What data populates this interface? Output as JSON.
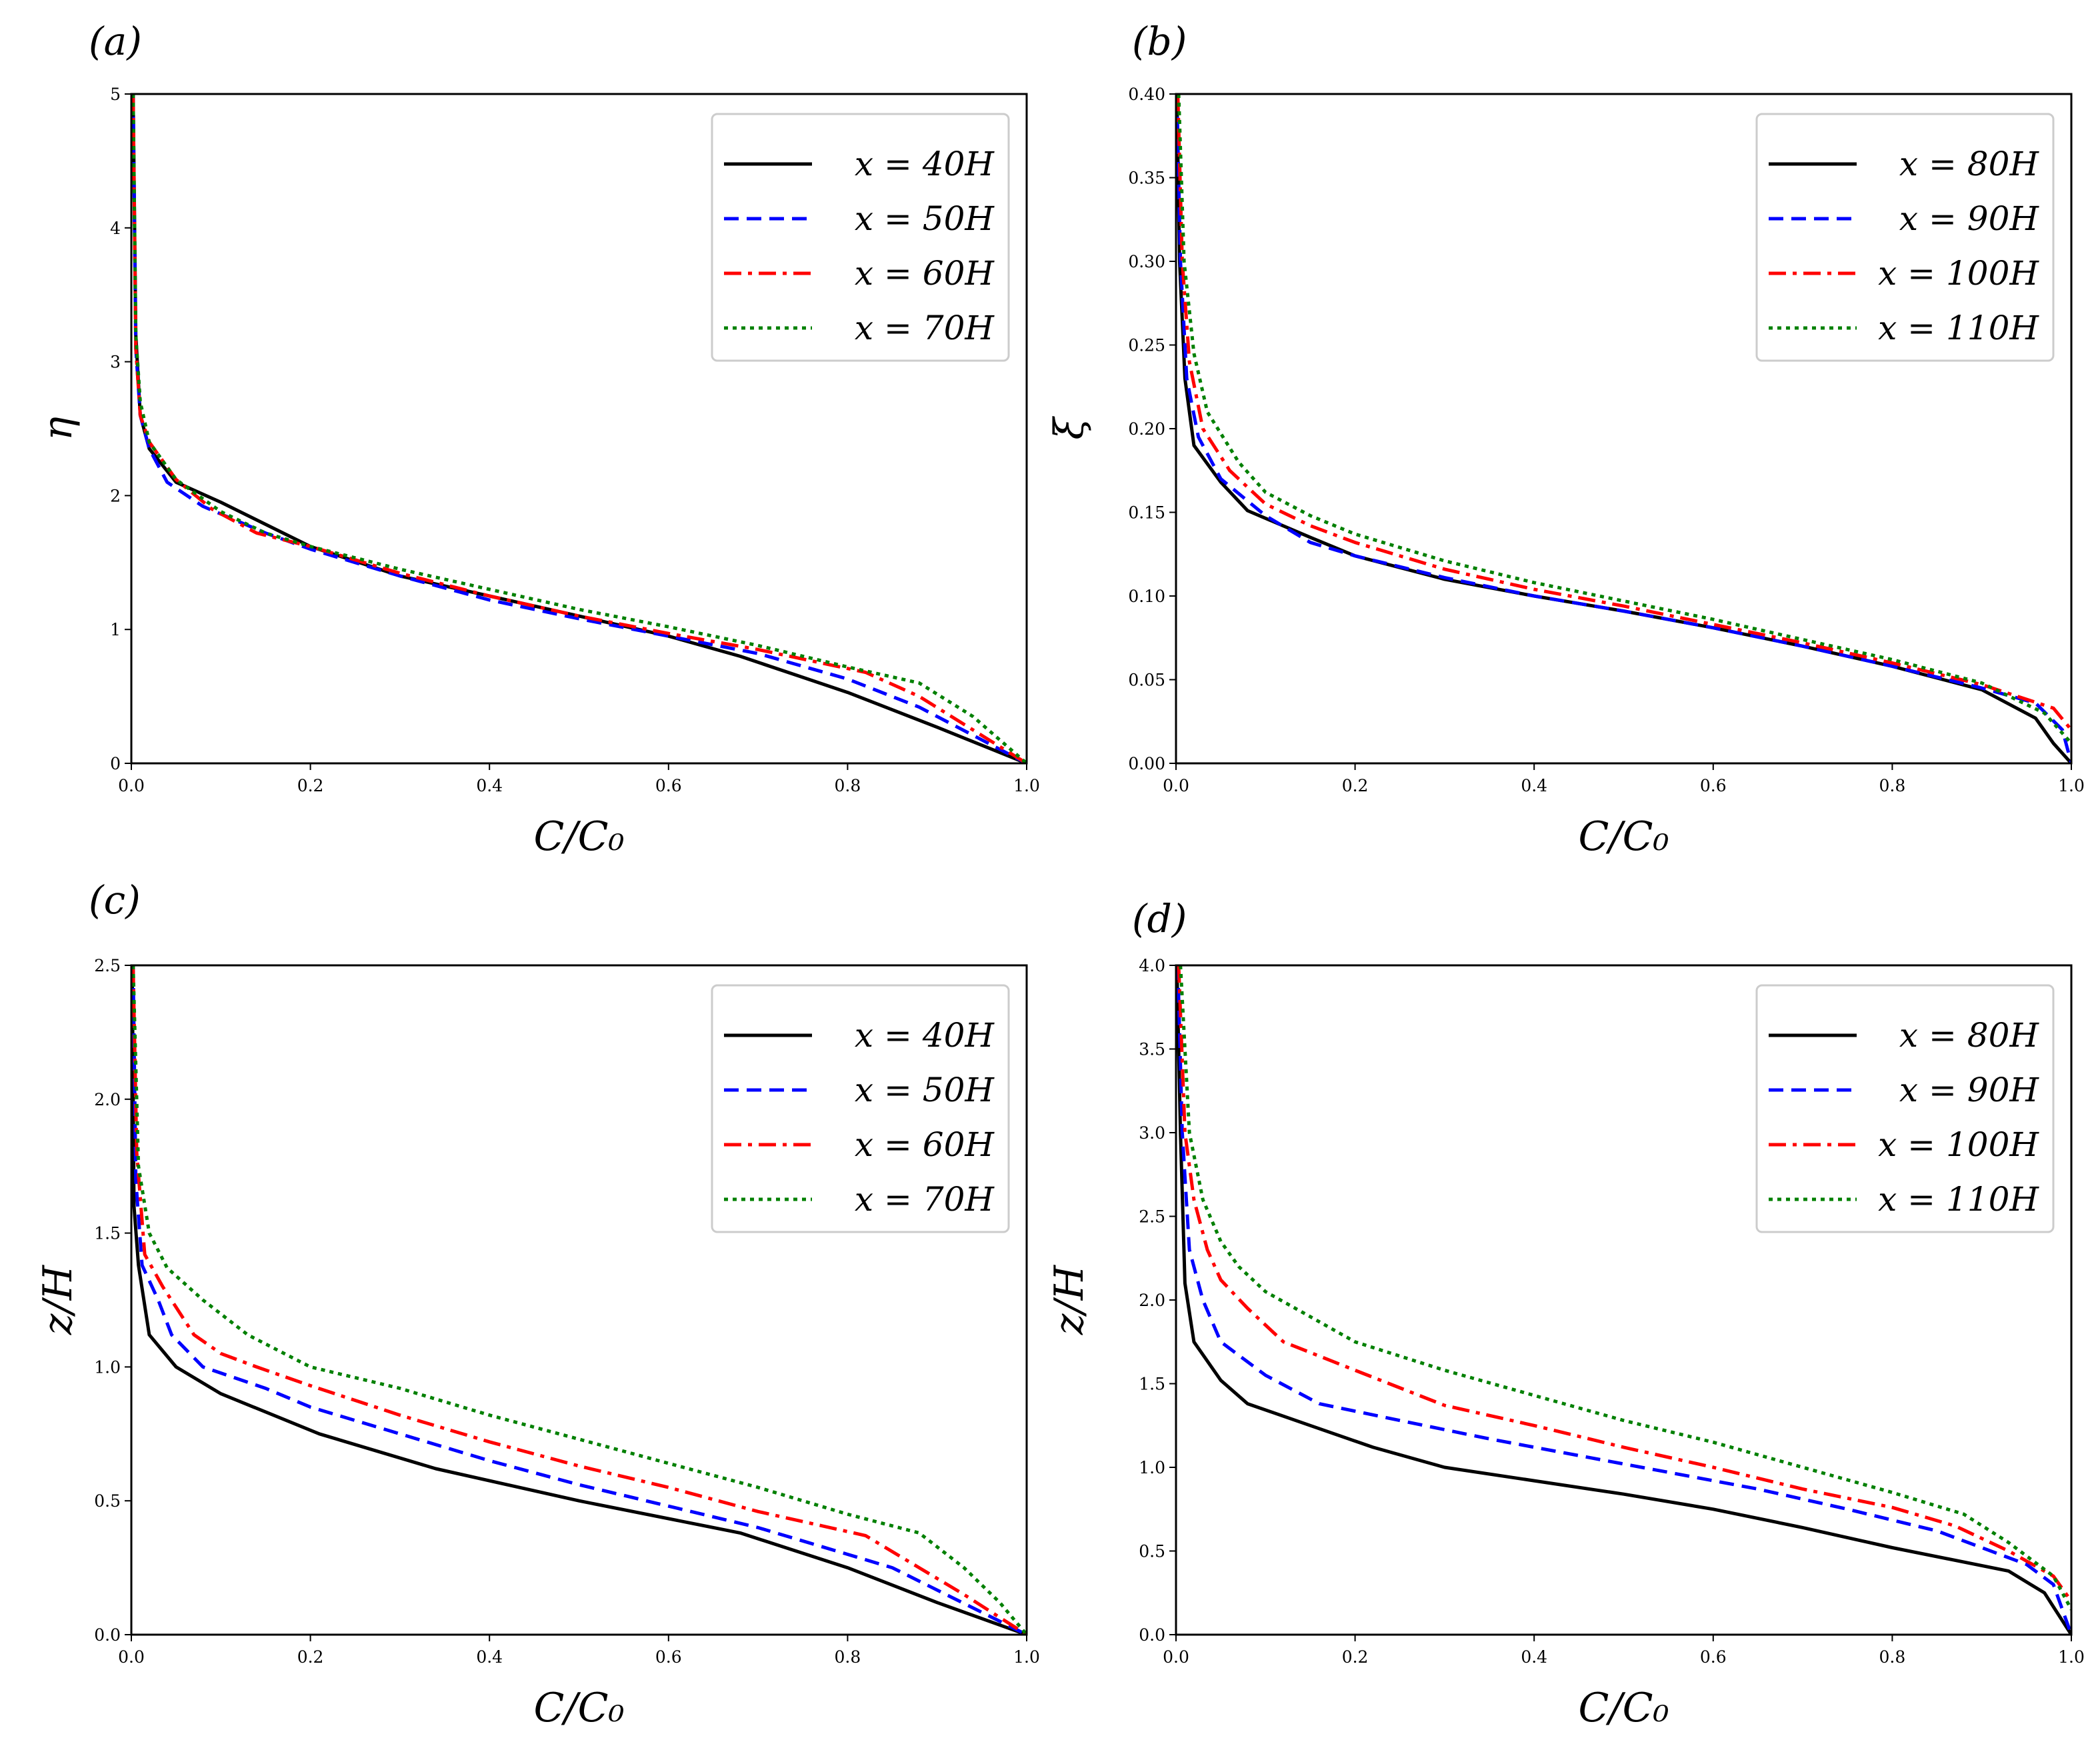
{
  "chart_data": [
    {
      "type": "line",
      "panel_label": "(a)",
      "xlabel": "C/C₀",
      "ylabel": "η",
      "xlim": [
        0,
        1
      ],
      "ylim": [
        0,
        5
      ],
      "xticks": [
        0.0,
        0.2,
        0.4,
        0.6,
        0.8,
        1.0
      ],
      "xtick_labels": [
        "0.0",
        "0.2",
        "0.4",
        "0.6",
        "0.8",
        "1.0"
      ],
      "yticks": [
        0,
        1,
        2,
        3,
        4,
        5
      ],
      "ytick_labels": [
        "0",
        "1",
        "2",
        "3",
        "4",
        "5"
      ],
      "legend_position": "top-right",
      "series": [
        {
          "name": "x = 40H",
          "color": "#000000",
          "style": "solid",
          "x": [
            0.002,
            0.005,
            0.01,
            0.02,
            0.05,
            0.1,
            0.2,
            0.3,
            0.4,
            0.5,
            0.6,
            0.68,
            0.8,
            0.9,
            1.0
          ],
          "y": [
            5.0,
            3.2,
            2.6,
            2.35,
            2.1,
            1.95,
            1.62,
            1.4,
            1.25,
            1.1,
            0.95,
            0.8,
            0.53,
            0.27,
            0.0
          ]
        },
        {
          "name": "x = 50H",
          "color": "#0000ff",
          "style": "dashed",
          "x": [
            0.002,
            0.005,
            0.01,
            0.02,
            0.04,
            0.08,
            0.15,
            0.2,
            0.3,
            0.4,
            0.5,
            0.6,
            0.7,
            0.8,
            0.88,
            1.0
          ],
          "y": [
            5.0,
            3.1,
            2.6,
            2.35,
            2.1,
            1.92,
            1.72,
            1.6,
            1.4,
            1.22,
            1.08,
            0.95,
            0.82,
            0.63,
            0.42,
            0.0
          ]
        },
        {
          "name": "x = 60H",
          "color": "#ff0000",
          "style": "dashdot",
          "x": [
            0.002,
            0.005,
            0.01,
            0.02,
            0.05,
            0.09,
            0.14,
            0.2,
            0.3,
            0.4,
            0.5,
            0.6,
            0.7,
            0.82,
            0.88,
            1.0
          ],
          "y": [
            5.0,
            3.1,
            2.6,
            2.4,
            2.12,
            1.9,
            1.72,
            1.62,
            1.42,
            1.25,
            1.1,
            0.97,
            0.85,
            0.68,
            0.5,
            0.0
          ]
        },
        {
          "name": "x = 70H",
          "color": "#008000",
          "style": "dotted",
          "x": [
            0.002,
            0.005,
            0.01,
            0.02,
            0.05,
            0.1,
            0.15,
            0.2,
            0.3,
            0.4,
            0.5,
            0.6,
            0.7,
            0.8,
            0.88,
            0.94,
            1.0
          ],
          "y": [
            5.0,
            3.2,
            2.7,
            2.4,
            2.12,
            1.88,
            1.72,
            1.62,
            1.45,
            1.3,
            1.15,
            1.02,
            0.88,
            0.72,
            0.6,
            0.35,
            0.0
          ]
        }
      ]
    },
    {
      "type": "line",
      "panel_label": "(b)",
      "xlabel": "C/C₀",
      "ylabel": "ξ",
      "xlim": [
        0,
        1
      ],
      "ylim": [
        0,
        0.4
      ],
      "xticks": [
        0.0,
        0.2,
        0.4,
        0.6,
        0.8,
        1.0
      ],
      "xtick_labels": [
        "0.0",
        "0.2",
        "0.4",
        "0.6",
        "0.8",
        "1.0"
      ],
      "yticks": [
        0.0,
        0.05,
        0.1,
        0.15,
        0.2,
        0.25,
        0.3,
        0.35,
        0.4
      ],
      "ytick_labels": [
        "0.00",
        "0.05",
        "0.10",
        "0.15",
        "0.20",
        "0.25",
        "0.30",
        "0.35",
        "0.40"
      ],
      "legend_position": "top-right",
      "series": [
        {
          "name": "x = 80H",
          "color": "#000000",
          "style": "solid",
          "x": [
            0.001,
            0.004,
            0.01,
            0.02,
            0.05,
            0.08,
            0.15,
            0.2,
            0.3,
            0.4,
            0.5,
            0.6,
            0.7,
            0.8,
            0.9,
            0.96,
            0.98,
            1.0
          ],
          "y": [
            0.4,
            0.3,
            0.23,
            0.19,
            0.168,
            0.151,
            0.135,
            0.124,
            0.11,
            0.1,
            0.091,
            0.081,
            0.07,
            0.058,
            0.044,
            0.027,
            0.012,
            0.0
          ]
        },
        {
          "name": "x = 90H",
          "color": "#0000ff",
          "style": "dashed",
          "x": [
            0.001,
            0.005,
            0.012,
            0.025,
            0.05,
            0.1,
            0.15,
            0.2,
            0.3,
            0.4,
            0.5,
            0.6,
            0.7,
            0.8,
            0.9,
            0.96,
            0.99,
            1.0
          ],
          "y": [
            0.4,
            0.3,
            0.23,
            0.195,
            0.17,
            0.148,
            0.132,
            0.124,
            0.111,
            0.1,
            0.091,
            0.081,
            0.07,
            0.058,
            0.045,
            0.036,
            0.02,
            0.0
          ]
        },
        {
          "name": "x = 100H",
          "color": "#ff0000",
          "style": "dashdot",
          "x": [
            0.002,
            0.007,
            0.015,
            0.03,
            0.06,
            0.1,
            0.15,
            0.2,
            0.3,
            0.4,
            0.5,
            0.6,
            0.7,
            0.8,
            0.9,
            0.98,
            1.0
          ],
          "y": [
            0.4,
            0.3,
            0.24,
            0.2,
            0.175,
            0.155,
            0.142,
            0.132,
            0.116,
            0.104,
            0.094,
            0.083,
            0.072,
            0.06,
            0.047,
            0.033,
            0.02
          ]
        },
        {
          "name": "x = 110H",
          "color": "#008000",
          "style": "dotted",
          "x": [
            0.003,
            0.009,
            0.02,
            0.035,
            0.07,
            0.1,
            0.15,
            0.2,
            0.3,
            0.4,
            0.5,
            0.6,
            0.7,
            0.8,
            0.9,
            0.97,
            1.0
          ],
          "y": [
            0.4,
            0.3,
            0.245,
            0.21,
            0.18,
            0.162,
            0.148,
            0.137,
            0.121,
            0.108,
            0.097,
            0.086,
            0.074,
            0.062,
            0.048,
            0.03,
            0.012
          ]
        }
      ]
    },
    {
      "type": "line",
      "panel_label": "(c)",
      "xlabel": "C/C₀",
      "ylabel": "z/H",
      "xlim": [
        0,
        1
      ],
      "ylim": [
        0,
        2.5
      ],
      "xticks": [
        0.0,
        0.2,
        0.4,
        0.6,
        0.8,
        1.0
      ],
      "xtick_labels": [
        "0.0",
        "0.2",
        "0.4",
        "0.6",
        "0.8",
        "1.0"
      ],
      "yticks": [
        0.0,
        0.5,
        1.0,
        1.5,
        2.0,
        2.5
      ],
      "ytick_labels": [
        "0.0",
        "0.5",
        "1.0",
        "1.5",
        "2.0",
        "2.5"
      ],
      "legend_position": "top-right",
      "series": [
        {
          "name": "x = 40H",
          "color": "#000000",
          "style": "solid",
          "x": [
            0.001,
            0.003,
            0.008,
            0.02,
            0.05,
            0.1,
            0.21,
            0.34,
            0.5,
            0.68,
            0.8,
            0.9,
            1.0
          ],
          "y": [
            2.5,
            1.6,
            1.38,
            1.12,
            1.0,
            0.9,
            0.75,
            0.62,
            0.5,
            0.38,
            0.25,
            0.12,
            0.0
          ]
        },
        {
          "name": "x = 50H",
          "color": "#0000ff",
          "style": "dashed",
          "x": [
            0.002,
            0.005,
            0.012,
            0.03,
            0.045,
            0.08,
            0.15,
            0.2,
            0.3,
            0.4,
            0.5,
            0.6,
            0.7,
            0.8,
            0.85,
            1.0
          ],
          "y": [
            2.5,
            1.7,
            1.38,
            1.25,
            1.12,
            1.0,
            0.92,
            0.85,
            0.75,
            0.65,
            0.56,
            0.48,
            0.4,
            0.3,
            0.25,
            0.0
          ]
        },
        {
          "name": "x = 60H",
          "color": "#ff0000",
          "style": "dashdot",
          "x": [
            0.002,
            0.006,
            0.015,
            0.035,
            0.07,
            0.1,
            0.14,
            0.2,
            0.3,
            0.4,
            0.5,
            0.6,
            0.7,
            0.82,
            0.88,
            0.93,
            1.0
          ],
          "y": [
            2.5,
            1.8,
            1.42,
            1.3,
            1.12,
            1.05,
            1.0,
            0.93,
            0.82,
            0.72,
            0.63,
            0.55,
            0.46,
            0.37,
            0.25,
            0.15,
            0.0
          ]
        },
        {
          "name": "x = 70H",
          "color": "#008000",
          "style": "dotted",
          "x": [
            0.002,
            0.008,
            0.02,
            0.04,
            0.08,
            0.13,
            0.2,
            0.3,
            0.4,
            0.5,
            0.6,
            0.7,
            0.8,
            0.88,
            0.93,
            0.97,
            1.0
          ],
          "y": [
            2.5,
            1.75,
            1.5,
            1.37,
            1.25,
            1.12,
            1.0,
            0.92,
            0.82,
            0.73,
            0.64,
            0.55,
            0.45,
            0.38,
            0.25,
            0.12,
            0.0
          ]
        }
      ]
    },
    {
      "type": "line",
      "panel_label": "(d)",
      "xlabel": "C/C₀",
      "ylabel": "z/H",
      "xlim": [
        0,
        1
      ],
      "ylim": [
        0,
        4
      ],
      "xticks": [
        0.0,
        0.2,
        0.4,
        0.6,
        0.8,
        1.0
      ],
      "xtick_labels": [
        "0.0",
        "0.2",
        "0.4",
        "0.6",
        "0.8",
        "1.0"
      ],
      "yticks": [
        0.0,
        0.5,
        1.0,
        1.5,
        2.0,
        2.5,
        3.0,
        3.5,
        4.0
      ],
      "ytick_labels": [
        "0.0",
        "0.5",
        "1.0",
        "1.5",
        "2.0",
        "2.5",
        "3.0",
        "3.5",
        "4.0"
      ],
      "legend_position": "top-right",
      "series": [
        {
          "name": "x = 80H",
          "color": "#000000",
          "style": "solid",
          "x": [
            0.001,
            0.005,
            0.01,
            0.02,
            0.05,
            0.08,
            0.15,
            0.22,
            0.3,
            0.4,
            0.5,
            0.6,
            0.7,
            0.8,
            0.93,
            0.97,
            1.0
          ],
          "y": [
            4.0,
            3.0,
            2.1,
            1.75,
            1.52,
            1.38,
            1.25,
            1.12,
            1.0,
            0.92,
            0.84,
            0.75,
            0.64,
            0.52,
            0.38,
            0.25,
            0.0
          ]
        },
        {
          "name": "x = 90H",
          "color": "#0000ff",
          "style": "dashed",
          "x": [
            0.002,
            0.007,
            0.015,
            0.03,
            0.05,
            0.1,
            0.16,
            0.25,
            0.35,
            0.45,
            0.55,
            0.65,
            0.75,
            0.85,
            0.95,
            0.98,
            1.0
          ],
          "y": [
            4.0,
            3.0,
            2.3,
            2.0,
            1.75,
            1.55,
            1.38,
            1.28,
            1.17,
            1.07,
            0.97,
            0.87,
            0.75,
            0.62,
            0.42,
            0.3,
            0.0
          ]
        },
        {
          "name": "x = 100H",
          "color": "#ff0000",
          "style": "dashdot",
          "x": [
            0.003,
            0.01,
            0.02,
            0.035,
            0.05,
            0.08,
            0.12,
            0.2,
            0.3,
            0.4,
            0.5,
            0.6,
            0.7,
            0.8,
            0.87,
            0.93,
            0.98,
            1.0
          ],
          "y": [
            4.0,
            3.0,
            2.6,
            2.3,
            2.12,
            1.95,
            1.75,
            1.58,
            1.37,
            1.25,
            1.12,
            1.0,
            0.87,
            0.76,
            0.65,
            0.5,
            0.35,
            0.2
          ]
        },
        {
          "name": "x = 110H",
          "color": "#008000",
          "style": "dotted",
          "x": [
            0.005,
            0.015,
            0.03,
            0.05,
            0.07,
            0.1,
            0.15,
            0.2,
            0.3,
            0.4,
            0.5,
            0.6,
            0.7,
            0.8,
            0.88,
            0.93,
            0.98,
            1.0
          ],
          "y": [
            4.0,
            3.0,
            2.6,
            2.35,
            2.2,
            2.05,
            1.9,
            1.75,
            1.58,
            1.43,
            1.28,
            1.15,
            1.0,
            0.85,
            0.72,
            0.55,
            0.35,
            0.15
          ]
        }
      ]
    }
  ]
}
